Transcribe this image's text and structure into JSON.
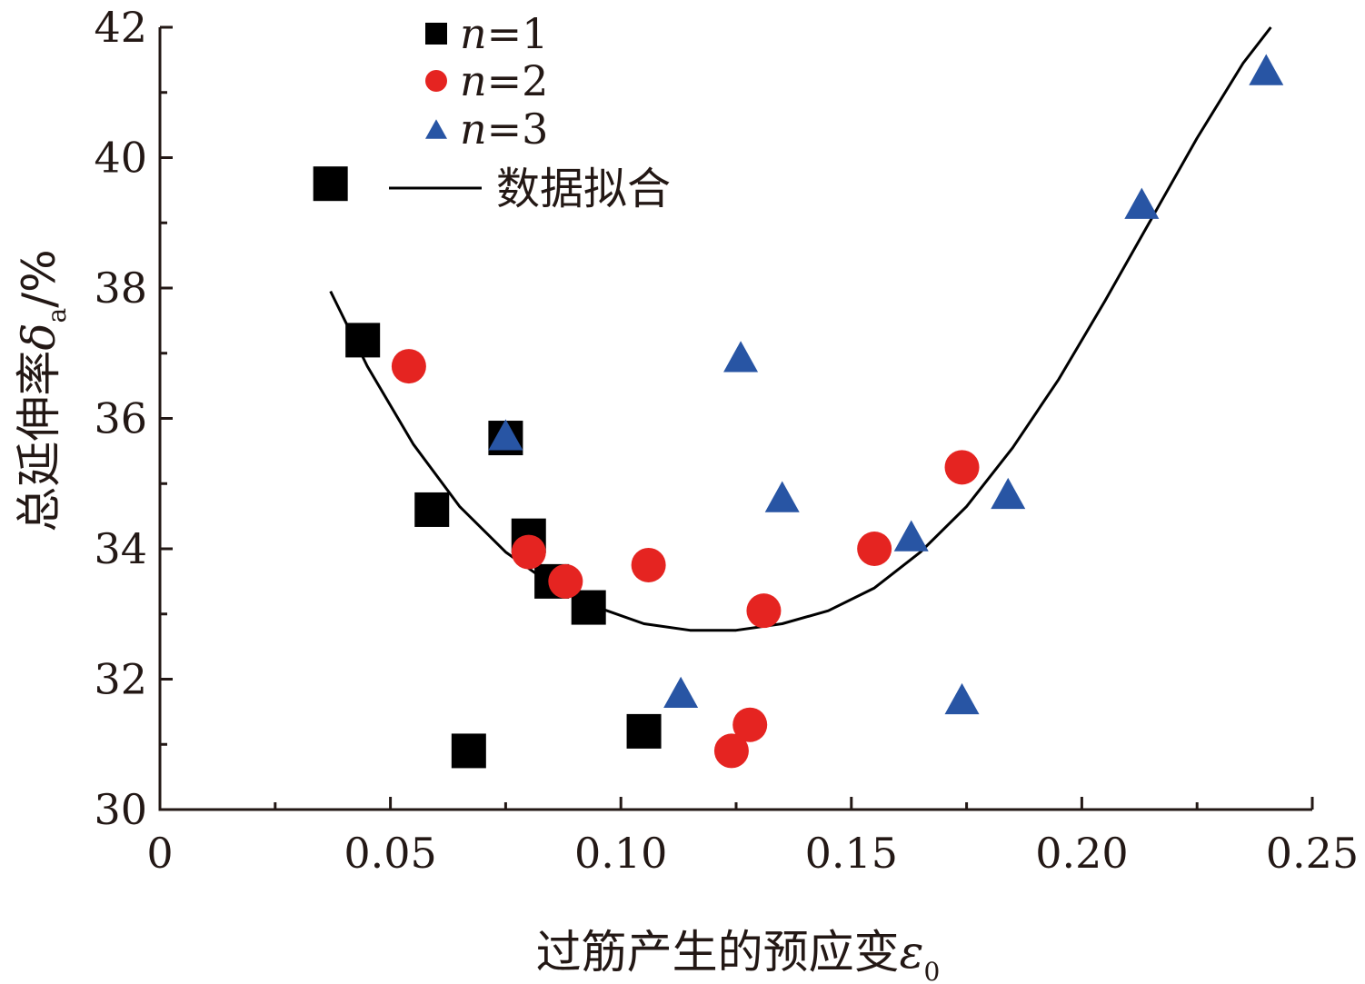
{
  "chart_data": {
    "type": "scatter",
    "xlabel": "过筋产生的预应变",
    "xlabel_symbol": "ε",
    "xlabel_subscript": "0",
    "ylabel": "总延伸率",
    "ylabel_symbol": "δ",
    "ylabel_subscript": "a",
    "ylabel_unit": "/%",
    "xlim": [
      0,
      0.25
    ],
    "ylim": [
      30,
      42
    ],
    "x_ticks": [
      {
        "value": 0,
        "label": "0"
      },
      {
        "value": 0.05,
        "label": "0.05"
      },
      {
        "value": 0.1,
        "label": "0.10"
      },
      {
        "value": 0.15,
        "label": "0.15"
      },
      {
        "value": 0.2,
        "label": "0.20"
      },
      {
        "value": 0.25,
        "label": "0.25"
      }
    ],
    "y_ticks": [
      {
        "value": 30,
        "label": "30"
      },
      {
        "value": 32,
        "label": "32"
      },
      {
        "value": 34,
        "label": "34"
      },
      {
        "value": 36,
        "label": "36"
      },
      {
        "value": 38,
        "label": "38"
      },
      {
        "value": 40,
        "label": "40"
      },
      {
        "value": 42,
        "label": "42"
      }
    ],
    "legend_position": "top-left",
    "grid": false,
    "series": [
      {
        "name": "n=1",
        "legend_var": "n",
        "legend_value": "=1",
        "marker": "square",
        "color": "#000000",
        "points": [
          {
            "x": 0.037,
            "y": 39.6
          },
          {
            "x": 0.044,
            "y": 37.2
          },
          {
            "x": 0.059,
            "y": 34.6
          },
          {
            "x": 0.067,
            "y": 30.9
          },
          {
            "x": 0.075,
            "y": 35.7
          },
          {
            "x": 0.08,
            "y": 34.2
          },
          {
            "x": 0.085,
            "y": 33.5
          },
          {
            "x": 0.093,
            "y": 33.1
          },
          {
            "x": 0.105,
            "y": 31.2
          }
        ]
      },
      {
        "name": "n=2",
        "legend_var": "n",
        "legend_value": "=2",
        "marker": "circle",
        "color": "#e52421",
        "points": [
          {
            "x": 0.054,
            "y": 36.8
          },
          {
            "x": 0.08,
            "y": 33.95
          },
          {
            "x": 0.088,
            "y": 33.5
          },
          {
            "x": 0.106,
            "y": 33.75
          },
          {
            "x": 0.124,
            "y": 30.9
          },
          {
            "x": 0.128,
            "y": 31.3
          },
          {
            "x": 0.131,
            "y": 33.05
          },
          {
            "x": 0.155,
            "y": 34.0
          },
          {
            "x": 0.174,
            "y": 35.25
          }
        ]
      },
      {
        "name": "n=3",
        "legend_var": "n",
        "legend_value": "=3",
        "marker": "triangle",
        "color": "#2855a4",
        "points": [
          {
            "x": 0.075,
            "y": 35.75
          },
          {
            "x": 0.113,
            "y": 31.8
          },
          {
            "x": 0.126,
            "y": 36.95
          },
          {
            "x": 0.135,
            "y": 34.8
          },
          {
            "x": 0.163,
            "y": 34.2
          },
          {
            "x": 0.174,
            "y": 31.7
          },
          {
            "x": 0.184,
            "y": 34.85
          },
          {
            "x": 0.213,
            "y": 39.3
          },
          {
            "x": 0.24,
            "y": 41.35
          }
        ]
      }
    ],
    "fit": {
      "name": "数据拟合",
      "color": "#000000",
      "x": [
        0.037,
        0.045,
        0.055,
        0.065,
        0.075,
        0.085,
        0.095,
        0.105,
        0.115,
        0.125,
        0.135,
        0.145,
        0.155,
        0.165,
        0.175,
        0.185,
        0.195,
        0.205,
        0.215,
        0.225,
        0.235,
        0.241
      ],
      "y": [
        37.95,
        36.8,
        35.6,
        34.65,
        33.95,
        33.45,
        33.1,
        32.85,
        32.75,
        32.75,
        32.85,
        33.05,
        33.4,
        33.95,
        34.65,
        35.55,
        36.6,
        37.8,
        39.05,
        40.3,
        41.45,
        42.0
      ]
    }
  }
}
